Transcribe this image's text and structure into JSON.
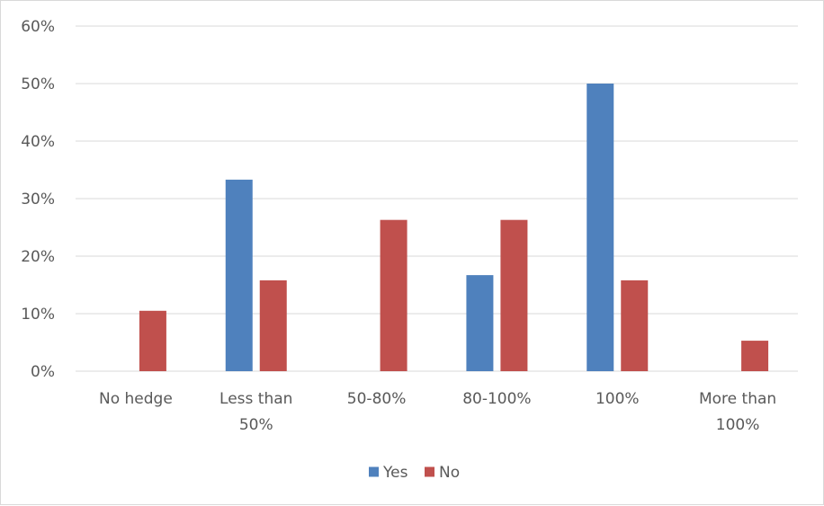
{
  "chart_data": {
    "type": "bar",
    "title": "",
    "xlabel": "",
    "ylabel": "",
    "categories": [
      [
        "No hedge"
      ],
      [
        "Less than",
        "50%"
      ],
      [
        "50-80%"
      ],
      [
        "80-100%"
      ],
      [
        "100%"
      ],
      [
        "More than",
        "100%"
      ]
    ],
    "series": [
      {
        "name": "Yes",
        "color": "#4f81bd",
        "values": [
          0,
          0.333,
          0,
          0.167,
          0.5,
          0
        ]
      },
      {
        "name": "No",
        "color": "#c0504d",
        "values": [
          0.105,
          0.158,
          0.263,
          0.263,
          0.158,
          0.053
        ]
      }
    ],
    "ylim": [
      0,
      0.6
    ],
    "yticks": [
      0,
      0.1,
      0.2,
      0.3,
      0.4,
      0.5,
      0.6
    ],
    "ytick_labels": [
      "0%",
      "10%",
      "20%",
      "30%",
      "40%",
      "50%",
      "60%"
    ],
    "grid": true,
    "legend_position": "bottom"
  }
}
